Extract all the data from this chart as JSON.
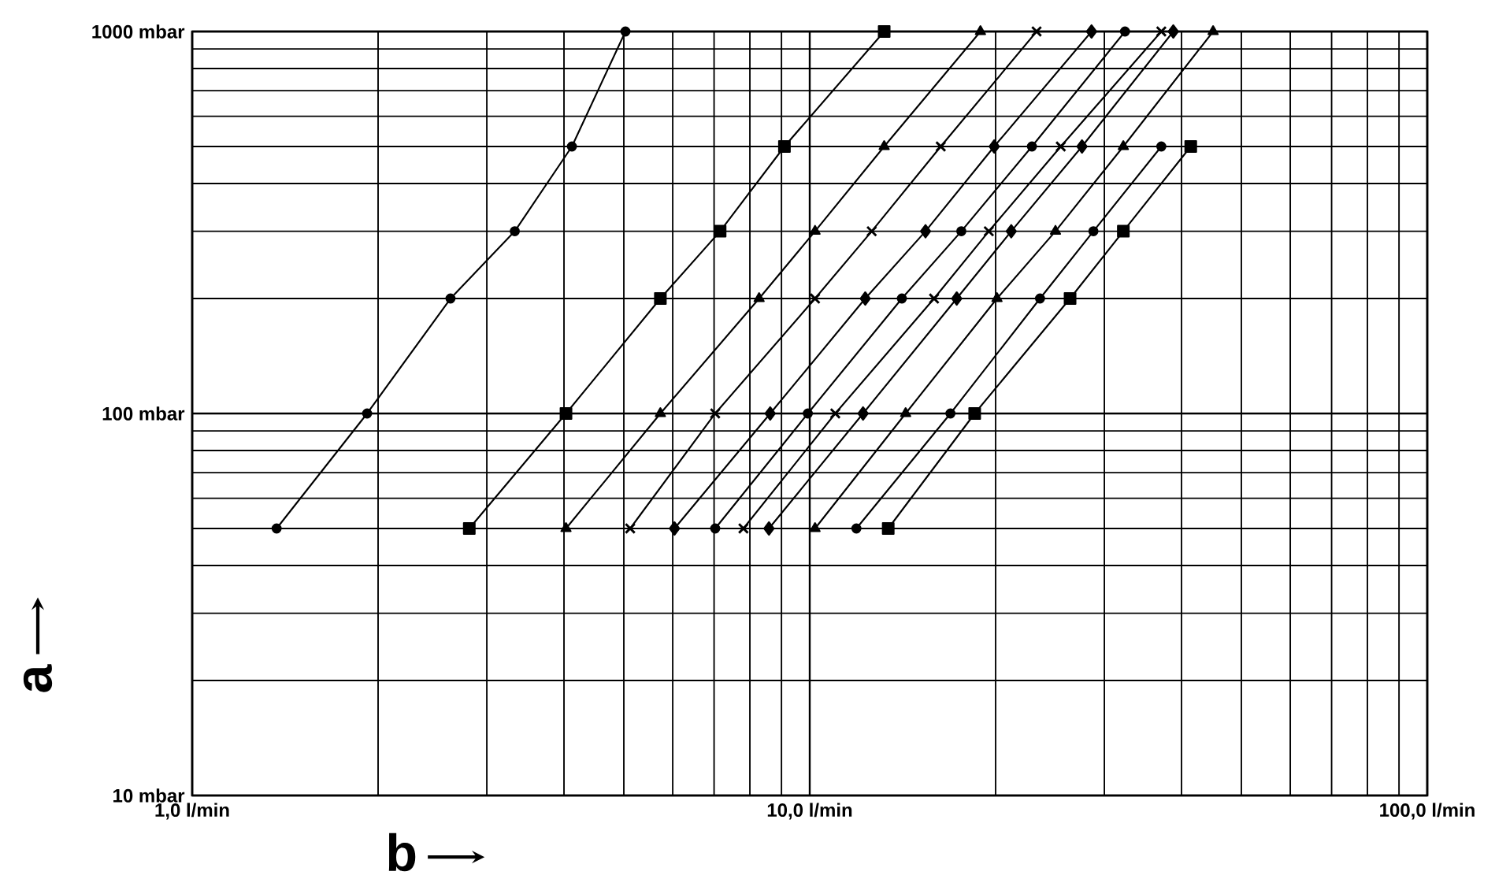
{
  "chart_data": {
    "type": "line",
    "xlabel": "b",
    "ylabel": "a",
    "log": "xy",
    "grid": true,
    "line_style": "solid",
    "xlim": [
      1,
      100
    ],
    "ylim": [
      10,
      1000
    ],
    "xticks": [
      {
        "value": 1,
        "label": "1,0 l/min"
      },
      {
        "value": 10,
        "label": "10,0 l/min"
      },
      {
        "value": 100,
        "label": "100,0 l/min"
      }
    ],
    "yticks": [
      {
        "value": 10,
        "label": "10 mbar"
      },
      {
        "value": 100,
        "label": "100 mbar"
      },
      {
        "value": 1000,
        "label": "1000 mbar"
      }
    ],
    "series": [
      {
        "color": "#000000",
        "marker": "circle",
        "x": [
          1.37,
          1.92,
          2.62,
          3.33,
          4.12,
          5.03
        ],
        "values": [
          50,
          100,
          200,
          300,
          500,
          1000
        ]
      },
      {
        "color": "#000000",
        "marker": "square",
        "x": [
          2.81,
          4.03,
          5.73,
          7.16,
          9.1,
          13.2
        ],
        "values": [
          50,
          100,
          200,
          300,
          500,
          1000
        ]
      },
      {
        "color": "#000000",
        "marker": "triangle",
        "x": [
          4.03,
          5.73,
          8.28,
          10.2,
          13.2,
          18.9
        ],
        "values": [
          50,
          100,
          200,
          300,
          500,
          1000
        ]
      },
      {
        "color": "#000000",
        "marker": "cross",
        "x": [
          5.12,
          7.03,
          10.2,
          12.6,
          16.3,
          23.3
        ],
        "values": [
          50,
          100,
          200,
          300,
          500,
          1000
        ]
      },
      {
        "color": "#000000",
        "marker": "diamond",
        "x": [
          6.04,
          8.63,
          12.3,
          15.4,
          19.9,
          28.6
        ],
        "values": [
          50,
          100,
          200,
          300,
          500,
          1000
        ]
      },
      {
        "color": "#000000",
        "marker": "circle",
        "x": [
          7.03,
          9.93,
          14.1,
          17.6,
          22.9,
          32.4
        ],
        "values": [
          50,
          100,
          200,
          300,
          500,
          1000
        ]
      },
      {
        "color": "#000000",
        "marker": "cross",
        "x": [
          7.81,
          11.0,
          15.9,
          19.5,
          25.5,
          37.1
        ],
        "values": [
          50,
          100,
          200,
          300,
          500,
          1000
        ]
      },
      {
        "color": "#000000",
        "marker": "diamond",
        "x": [
          8.59,
          12.2,
          17.3,
          21.2,
          27.6,
          38.8
        ],
        "values": [
          50,
          100,
          200,
          300,
          500,
          1000
        ]
      },
      {
        "color": "#000000",
        "marker": "triangle",
        "x": [
          10.2,
          14.3,
          20.1,
          25.0,
          32.2,
          45.0
        ],
        "values": [
          50,
          100,
          200,
          300,
          500,
          1000
        ]
      },
      {
        "color": "#000000",
        "marker": "circle",
        "x": [
          11.9,
          16.9,
          23.6,
          28.8,
          37.1
        ],
        "values": [
          50,
          100,
          200,
          300,
          500
        ]
      },
      {
        "color": "#000000",
        "marker": "square",
        "x": [
          13.4,
          18.5,
          26.4,
          32.2,
          41.4
        ],
        "values": [
          50,
          100,
          200,
          300,
          500
        ]
      }
    ]
  }
}
